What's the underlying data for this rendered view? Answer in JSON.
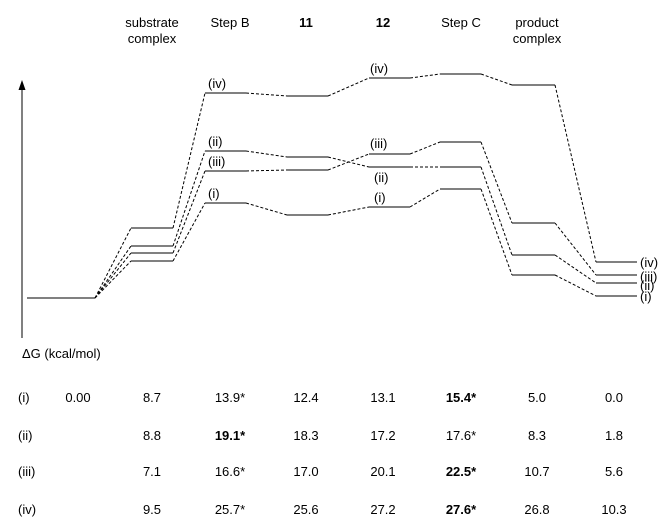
{
  "column_headers": [
    {
      "id": "sub",
      "lines": [
        "substrate",
        "complex"
      ],
      "bold": false
    },
    {
      "id": "stepB",
      "lines": [
        "Step B"
      ],
      "bold": false
    },
    {
      "id": "c11",
      "lines": [
        "11"
      ],
      "bold": true
    },
    {
      "id": "c12",
      "lines": [
        "12"
      ],
      "bold": true
    },
    {
      "id": "stepC",
      "lines": [
        "Step C"
      ],
      "bold": false
    },
    {
      "id": "prod",
      "lines": [
        "product",
        "complex"
      ],
      "bold": false
    }
  ],
  "axis_label": "ΔG (kcal/mol)",
  "energy_table": [
    {
      "label": "(i)",
      "values": [
        "0.00",
        "8.7",
        "13.9*",
        "12.4",
        "13.1",
        "15.4*",
        "5.0",
        "0.0"
      ],
      "bold": [
        false,
        false,
        false,
        false,
        false,
        true,
        false,
        false
      ]
    },
    {
      "label": "(ii)",
      "values": [
        "",
        "8.8",
        "19.1*",
        "18.3",
        "17.2",
        "17.6*",
        "8.3",
        "1.8"
      ],
      "bold": [
        false,
        false,
        true,
        false,
        false,
        false,
        false,
        false
      ]
    },
    {
      "label": "(iii)",
      "values": [
        "",
        "7.1",
        "16.6*",
        "17.0",
        "20.1",
        "22.5*",
        "10.7",
        "5.6"
      ],
      "bold": [
        false,
        false,
        false,
        false,
        false,
        true,
        false,
        false
      ]
    },
    {
      "label": "(iv)",
      "values": [
        "",
        "9.5",
        "25.7*",
        "25.6",
        "27.2",
        "27.6*",
        "26.8",
        "10.3"
      ],
      "bold": [
        false,
        false,
        false,
        false,
        false,
        true,
        false,
        false
      ]
    }
  ],
  "diagram_labels": {
    "stepB": [
      "(iv)",
      "(ii)",
      "(iii)",
      "(i)"
    ],
    "c12": [
      "(iv)",
      "(iii)",
      "(ii)",
      "(i)"
    ],
    "right": [
      "(iv)",
      "(iii)",
      "(ii)",
      "(i)"
    ]
  }
}
